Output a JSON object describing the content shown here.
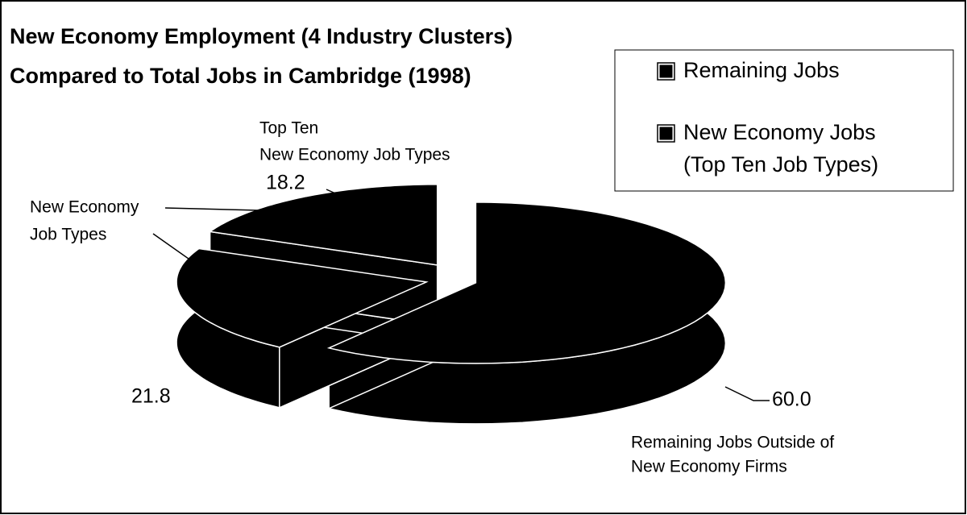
{
  "chart_data": {
    "type": "pie3d",
    "title": [
      "New Economy Employment (4 Industry Clusters)",
      "Compared to Total Jobs in Cambridge (1998)"
    ],
    "legend": [
      [
        "Remaining Jobs"
      ],
      [
        "New Economy Jobs",
        "(Top Ten Job Types)"
      ]
    ],
    "categories": [
      [
        "Remaining Jobs Outside of",
        "New Economy Firms"
      ],
      [
        "New Economy",
        "Job Types"
      ],
      [
        "Top Ten",
        "New Economy Job Types"
      ]
    ],
    "values": [
      60.0,
      21.8,
      18.2
    ],
    "value_labels": [
      "60.0",
      "21.8",
      "18.2"
    ],
    "color": "#000000",
    "edge_color": "#ffffff"
  }
}
